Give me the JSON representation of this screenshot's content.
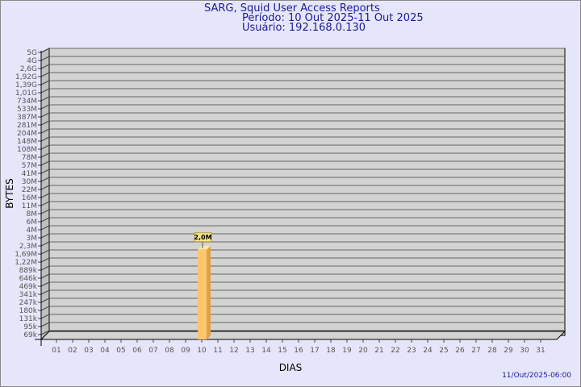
{
  "header": {
    "title": "SARG, Squid User Access Reports",
    "period": "Período: 10 Out 2025-11 Out 2025",
    "user": "Usuário: 192.168.0.130"
  },
  "footer": {
    "timestamp": "11/Out/2025-06:00"
  },
  "colors": {
    "background": "#e6e6fa",
    "plot": "#d3d3d3",
    "bar": "#ffc56b",
    "bar_side": "#e0a04a",
    "title": "#1a1a9a"
  },
  "chart_data": {
    "type": "bar",
    "style": "3d",
    "xlabel": "DIAS",
    "ylabel": "BYTES",
    "grid": true,
    "y_scale": "log",
    "y_tick_labels": [
      "5G",
      "4G",
      "2,6G",
      "1,92G",
      "1,39G",
      "1,01G",
      "734M",
      "533M",
      "387M",
      "281M",
      "204M",
      "148M",
      "108M",
      "78M",
      "57M",
      "41M",
      "30M",
      "22M",
      "16M",
      "11M",
      "8M",
      "6M",
      "4M",
      "3M",
      "2,3M",
      "1,69M",
      "1,22M",
      "889k",
      "646k",
      "469k",
      "341k",
      "247k",
      "180k",
      "131k",
      "95k",
      "69k"
    ],
    "categories": [
      "01",
      "02",
      "03",
      "04",
      "05",
      "06",
      "07",
      "08",
      "09",
      "10",
      "11",
      "12",
      "13",
      "14",
      "15",
      "16",
      "17",
      "18",
      "19",
      "20",
      "21",
      "22",
      "23",
      "24",
      "25",
      "26",
      "27",
      "28",
      "29",
      "30",
      "31"
    ],
    "bars": [
      {
        "day": "10",
        "value": 2000000,
        "label": "2,0M"
      }
    ]
  }
}
